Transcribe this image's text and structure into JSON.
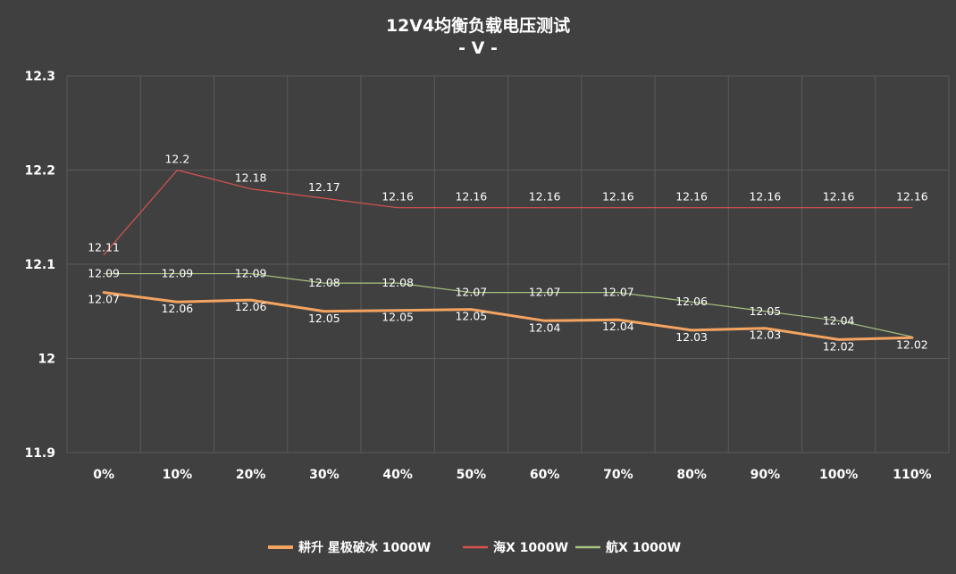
{
  "chart_data": {
    "type": "line",
    "title": "12V4均衡负载电压测试",
    "subtitle": "- V -",
    "categories": [
      "0%",
      "10%",
      "20%",
      "30%",
      "40%",
      "50%",
      "60%",
      "70%",
      "80%",
      "90%",
      "100%",
      "110%"
    ],
    "y_ticks": [
      "12.3",
      "12.2",
      "12.1",
      "12",
      "11.9"
    ],
    "ylim": [
      11.9,
      12.3
    ],
    "grid": true,
    "legend_position": "bottom",
    "series": [
      {
        "name": "耕升 星极破冰 1000W",
        "color": "#f4a460",
        "values": [
          12.07,
          12.06,
          12.062,
          12.05,
          12.051,
          12.052,
          12.04,
          12.041,
          12.03,
          12.032,
          12.02,
          12.022
        ],
        "labels": [
          "12.07",
          "12.06",
          "12.06",
          "12.05",
          "12.05",
          "12.05",
          "12.04",
          "12.04",
          "12.03",
          "12.03",
          "12.02",
          "12.02"
        ]
      },
      {
        "name": "海X 1000W",
        "color": "#d9534f",
        "values": [
          12.11,
          12.2,
          12.18,
          12.17,
          12.16,
          12.16,
          12.16,
          12.16,
          12.16,
          12.16,
          12.16,
          12.16
        ],
        "labels": [
          "12.11",
          "12.2",
          "12.18",
          "12.17",
          "12.16",
          "12.16",
          "12.16",
          "12.16",
          "12.16",
          "12.16",
          "12.16",
          "12.16"
        ]
      },
      {
        "name": "航X 1000W",
        "color": "#a9c47f",
        "values": [
          12.09,
          12.09,
          12.09,
          12.08,
          12.08,
          12.07,
          12.07,
          12.07,
          12.06,
          12.05,
          12.04,
          12.023
        ],
        "labels": [
          "12.09",
          "12.09",
          "12.09",
          "12.08",
          "12.08",
          "12.07",
          "12.07",
          "12.07",
          "12.06",
          "12.05",
          "12.04",
          ""
        ]
      }
    ]
  }
}
